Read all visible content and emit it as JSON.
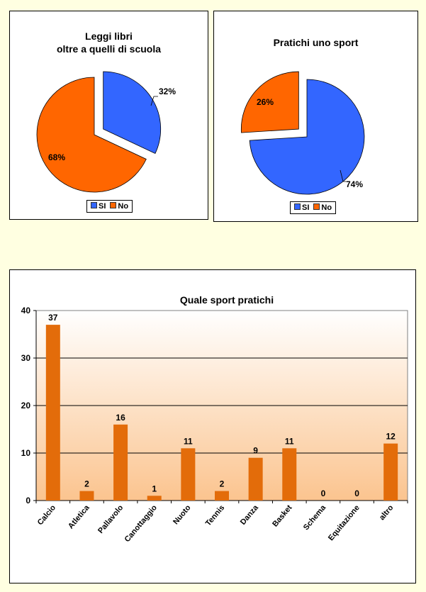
{
  "chart_data": [
    {
      "type": "pie",
      "title": "Leggi libri\noltre a quelli di scuola",
      "title_lines": [
        "Leggi libri",
        "oltre a quelli di scuola"
      ],
      "categories": [
        "SI",
        "No"
      ],
      "values": [
        32,
        68
      ],
      "labels": [
        "32%",
        "68%"
      ],
      "colors": [
        "#3366FF",
        "#FF6600"
      ],
      "exploded": "SI",
      "legend": "bottom"
    },
    {
      "type": "pie",
      "title": "Pratichi uno sport",
      "categories": [
        "SI",
        "No"
      ],
      "values": [
        74,
        26
      ],
      "labels": [
        "74%",
        "26%"
      ],
      "colors": [
        "#3366FF",
        "#FF6600"
      ],
      "exploded": "No",
      "legend": "bottom"
    },
    {
      "type": "bar",
      "title": "Quale sport pratichi",
      "categories": [
        "Calcio",
        "Atletica",
        "Pallavolo",
        "Canottaggio",
        "Nuoto",
        "Tennis",
        "Danza",
        "Basket",
        "Schema",
        "Equitazione",
        "altro"
      ],
      "values": [
        37,
        2,
        16,
        1,
        11,
        2,
        9,
        11,
        0,
        0,
        12
      ],
      "data_labels": [
        "37",
        "2",
        "16",
        "1",
        "11",
        "2",
        "9",
        "11",
        "0",
        "0",
        "12"
      ],
      "yticks": [
        "0",
        "10",
        "20",
        "30",
        "40"
      ],
      "ylim": [
        0,
        40
      ],
      "grid": true,
      "bar_color": "#E36C0A",
      "xlabel": "",
      "ylabel": ""
    }
  ]
}
